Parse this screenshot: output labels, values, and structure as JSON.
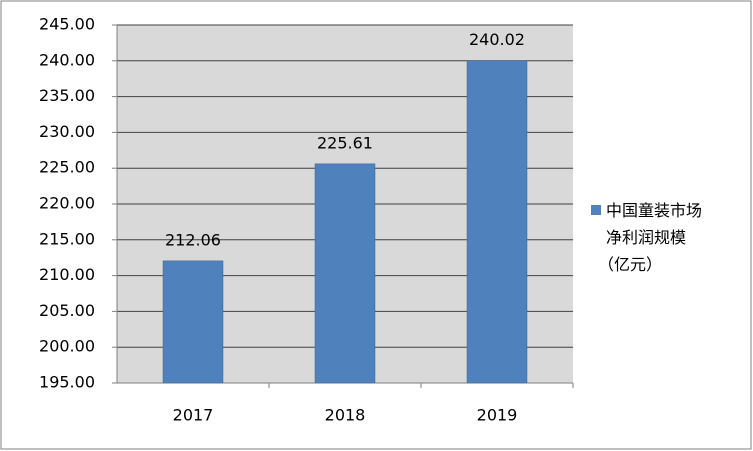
{
  "chart_data": {
    "type": "bar",
    "categories": [
      "2017",
      "2018",
      "2019"
    ],
    "series": [
      {
        "name": "中国童装市场净利润规模（亿元）",
        "color": "#4f81bd",
        "values": [
          212.06,
          225.61,
          240.02
        ]
      }
    ],
    "ylim": [
      195,
      245
    ],
    "yticks": [
      {
        "value": 195,
        "label": "195.00"
      },
      {
        "value": 200,
        "label": "200.00"
      },
      {
        "value": 205,
        "label": "205.00"
      },
      {
        "value": 210,
        "label": "210.00"
      },
      {
        "value": 215,
        "label": "215.00"
      },
      {
        "value": 220,
        "label": "220.00"
      },
      {
        "value": 225,
        "label": "225.00"
      },
      {
        "value": 230,
        "label": "230.00"
      },
      {
        "value": 235,
        "label": "235.00"
      },
      {
        "value": 240,
        "label": "240.00"
      },
      {
        "value": 245,
        "label": "245.00"
      }
    ],
    "grid": true,
    "legend": "right"
  }
}
